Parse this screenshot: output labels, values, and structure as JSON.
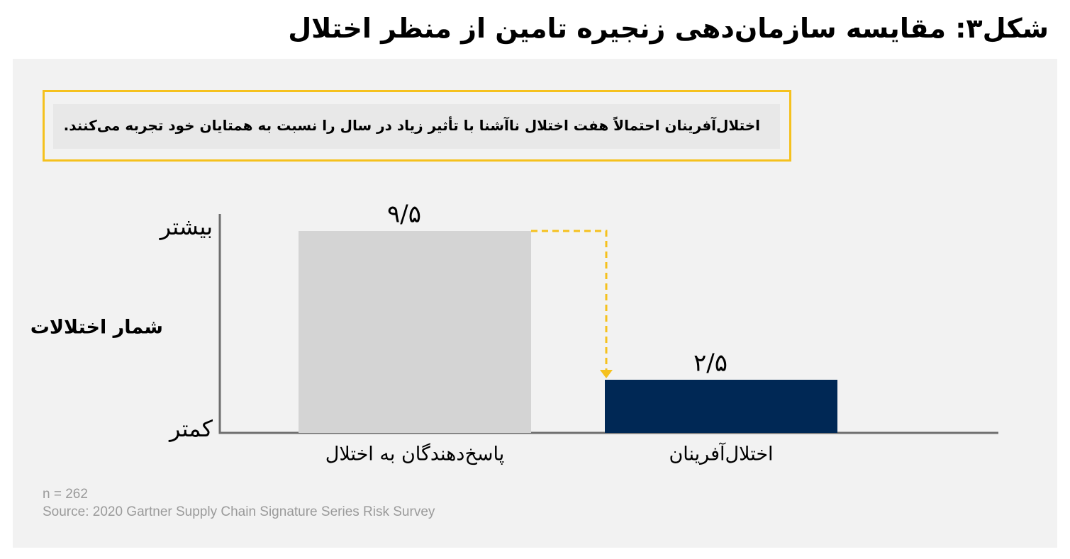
{
  "chart_data": {
    "type": "bar",
    "title": "شکل۳: مقایسه سازمان‌دهی زنجیره تامین از منظر اختلال",
    "callout": "اختلال‌آفرینان احتمالاً هفت اختلال ناآشنا با تأثیر زیاد در سال را نسبت به همتایان خود تجربه می‌کنند.",
    "y_label": "شمار اختلالات",
    "categories": [
      "پاسخ‌دهندگان به اختلال",
      "اختلال‌آفرینان"
    ],
    "values": [
      9.5,
      2.5
    ],
    "value_labels": [
      "۹/۵",
      "۲/۵"
    ],
    "colors": [
      "#d4d4d4",
      "#002855"
    ],
    "ylim": [
      0,
      10.3
    ],
    "yticks": [
      {
        "value": 0,
        "label": "کمتر"
      },
      {
        "value": 9.5,
        "label": "بیشتر"
      }
    ],
    "grid": false,
    "note": "n = 262",
    "source": "Source: 2020 Gartner Supply Chain Signature Series Risk Survey"
  }
}
